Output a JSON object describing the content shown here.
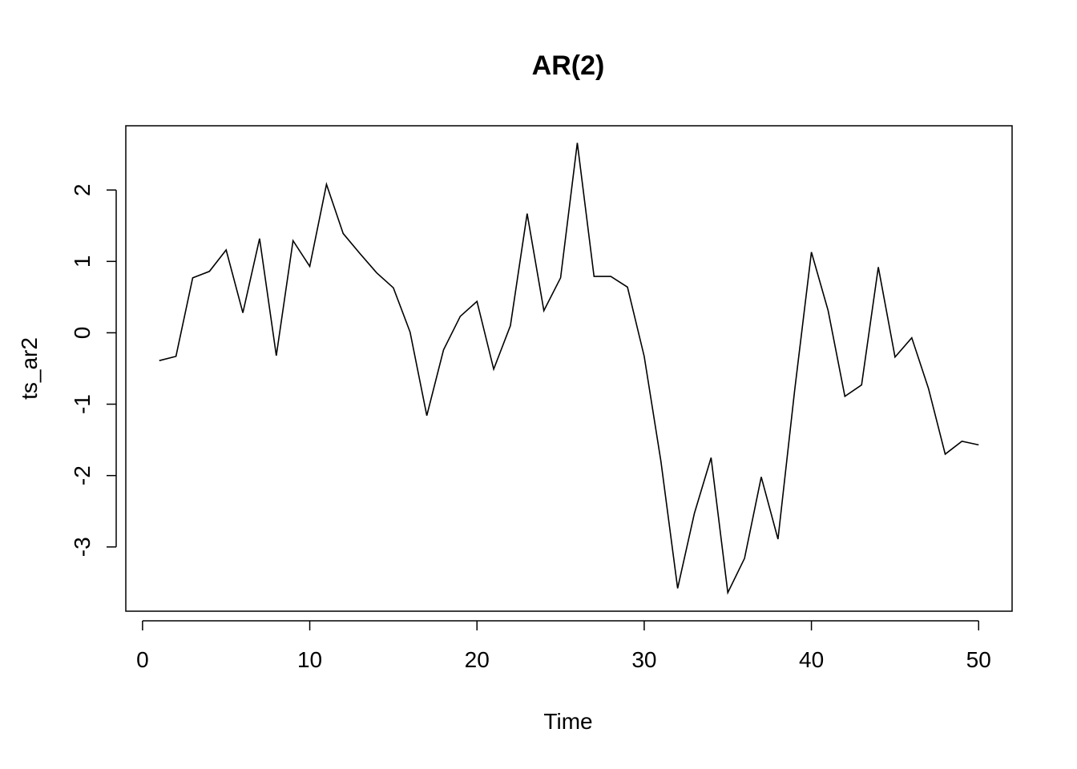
{
  "chart_data": {
    "type": "line",
    "title": "AR(2)",
    "xlabel": "Time",
    "ylabel": "ts_ar2",
    "xlim": [
      -1,
      52
    ],
    "ylim": [
      -3.9,
      2.9
    ],
    "x_ticks": [
      0,
      10,
      20,
      30,
      40,
      50
    ],
    "y_ticks": [
      -3,
      -2,
      -1,
      0,
      1,
      2
    ],
    "x_tick_labels": [
      "0",
      "10",
      "20",
      "30",
      "40",
      "50"
    ],
    "y_tick_labels": [
      "-3",
      "-2",
      "-1",
      "0",
      "1",
      "2"
    ],
    "grid": false,
    "legend": "none",
    "line_color": "#000000",
    "series": [
      {
        "x": [
          1,
          2,
          3,
          4,
          5,
          6,
          7,
          8,
          9,
          10,
          11,
          12,
          13,
          14,
          15,
          16,
          17,
          18,
          19,
          20,
          21,
          22,
          23,
          24,
          25,
          26,
          27,
          28,
          29,
          30,
          31,
          32,
          33,
          34,
          35,
          36,
          37,
          38,
          39,
          40,
          41,
          42,
          43,
          44,
          45,
          46,
          47,
          48,
          49,
          50
        ],
        "values": [
          -0.39,
          -0.33,
          0.77,
          0.86,
          1.16,
          0.28,
          1.32,
          -0.32,
          1.29,
          0.93,
          2.08,
          1.39,
          1.11,
          0.84,
          0.63,
          0.01,
          -1.16,
          -0.24,
          0.23,
          0.44,
          -0.51,
          0.1,
          1.67,
          0.31,
          0.77,
          2.66,
          0.79,
          0.79,
          0.64,
          -0.33,
          -1.8,
          -3.58,
          -2.53,
          -1.75,
          -3.64,
          -3.16,
          -2.02,
          -2.89,
          -0.8,
          1.13,
          0.31,
          -0.89,
          -0.73,
          0.92,
          -0.34,
          -0.07,
          -0.78,
          -1.7,
          -1.52,
          -1.57
        ]
      }
    ]
  }
}
